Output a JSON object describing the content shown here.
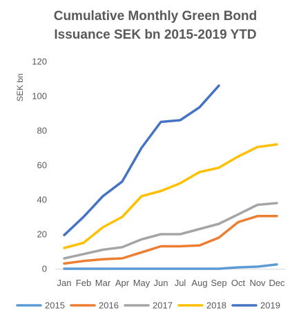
{
  "chart_data": {
    "type": "line",
    "title": [
      "Cumulative Monthly Green Bond",
      "Issuance SEK bn 2015-2019 YTD"
    ],
    "xlabel": "",
    "ylabel": "SEK bn",
    "ylim": [
      0,
      120
    ],
    "yticks": [
      0,
      20,
      40,
      60,
      80,
      100,
      120
    ],
    "grid": false,
    "legend_position": "bottom",
    "categories": [
      "Jan",
      "Feb",
      "Mar",
      "Apr",
      "May",
      "Jun",
      "Jul",
      "Aug",
      "Sep",
      "Oct",
      "Nov",
      "Dec"
    ],
    "series": [
      {
        "name": "2015",
        "color": "#5B9BD5",
        "values": [
          0,
          0,
          0,
          0,
          0,
          0,
          0,
          0,
          0,
          0.8,
          1.2,
          2.5
        ]
      },
      {
        "name": "2016",
        "color": "#ED7D31",
        "values": [
          3,
          4.5,
          5.5,
          6,
          9.5,
          13,
          13,
          13.5,
          18,
          27,
          30.5,
          30.5
        ]
      },
      {
        "name": "2017",
        "color": "#A5A5A5",
        "values": [
          6,
          8.5,
          11,
          12.5,
          17,
          20,
          20,
          23,
          26,
          31.5,
          37,
          38
        ]
      },
      {
        "name": "2018",
        "color": "#FFC000",
        "values": [
          12,
          15,
          24,
          30,
          42,
          45,
          49.5,
          56,
          58.5,
          65,
          70.5,
          72
        ]
      },
      {
        "name": "2019",
        "color": "#4472C4",
        "values": [
          19.5,
          30,
          42,
          50.5,
          70,
          85,
          86,
          93.5,
          106,
          null,
          null,
          null
        ]
      }
    ]
  }
}
